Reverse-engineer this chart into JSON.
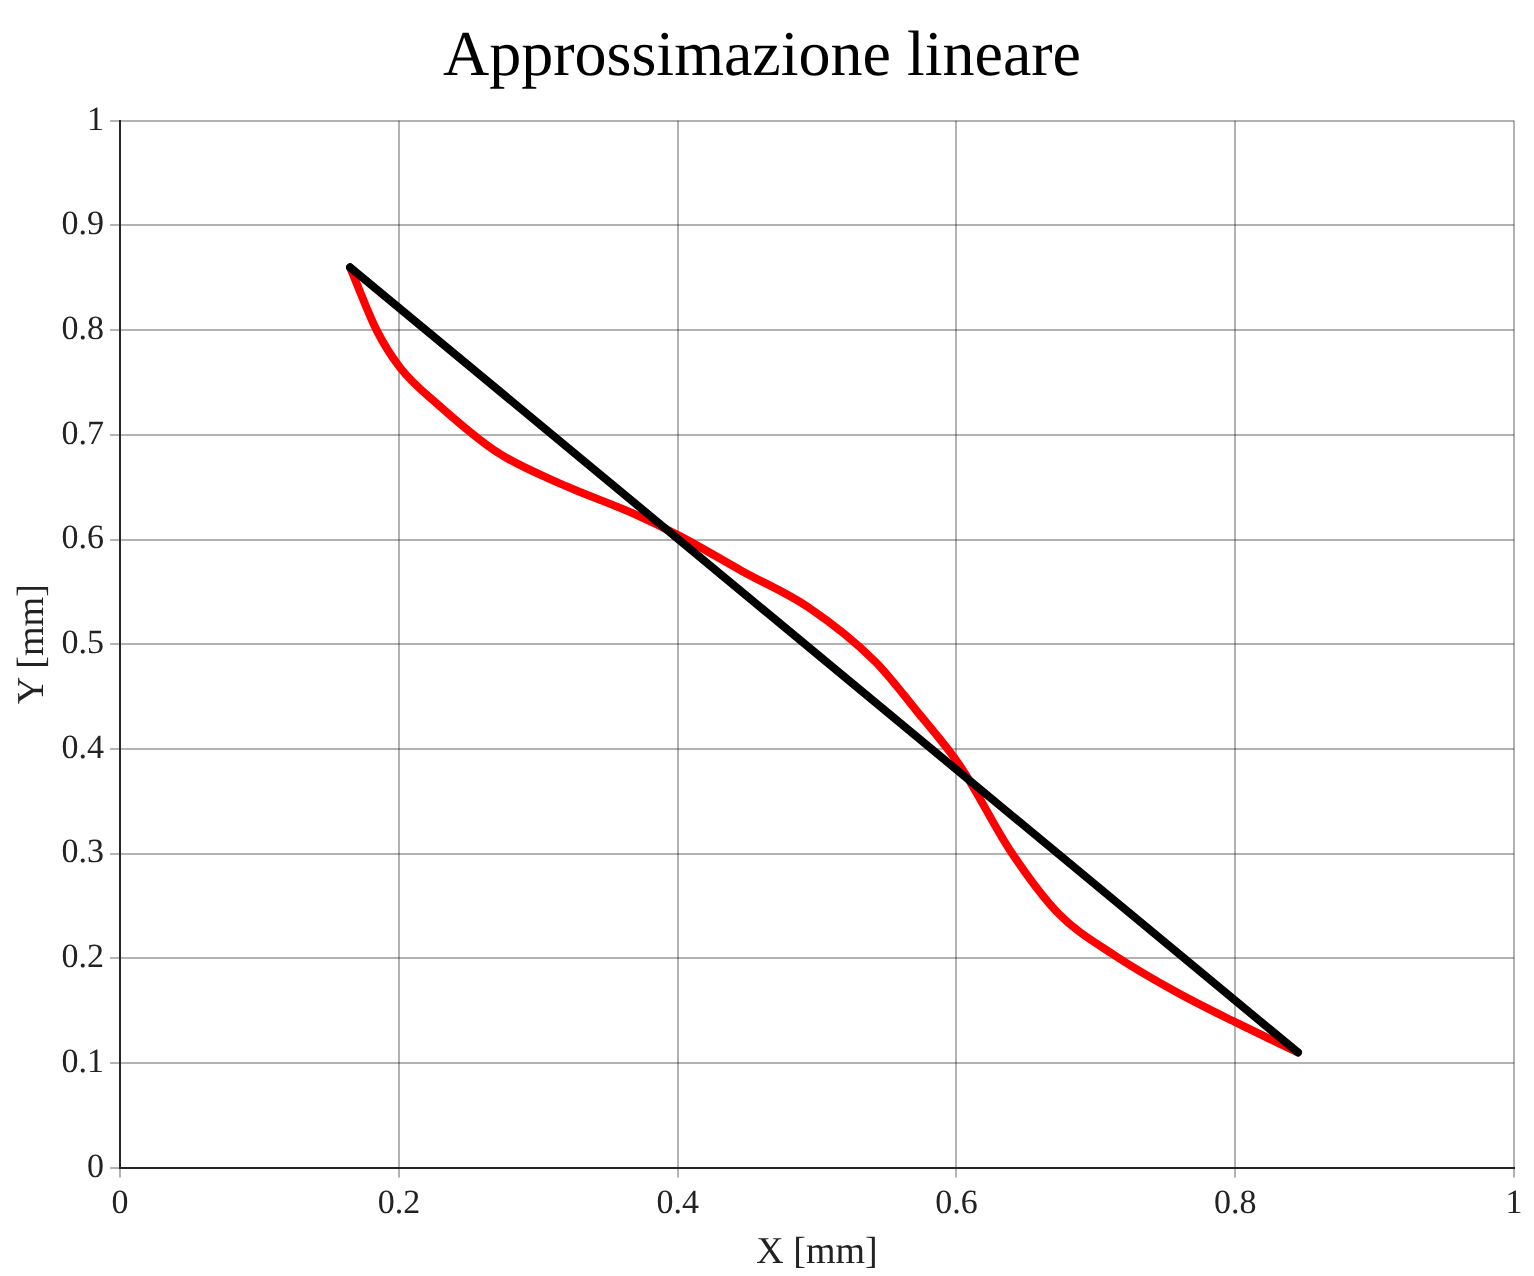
{
  "chart_data": {
    "type": "line",
    "title": "Approssimazione lineare",
    "xlabel": "X [mm]",
    "ylabel": "Y [mm]",
    "xlim": [
      0,
      1
    ],
    "xticks": [
      0,
      0.2,
      0.4,
      0.6,
      0.8,
      1
    ],
    "ylim": [
      0,
      1
    ],
    "yticks": [
      0,
      0.1,
      0.2,
      0.3,
      0.4,
      0.5,
      0.6,
      0.7,
      0.8,
      0.9,
      1
    ],
    "grid": true,
    "legend": false,
    "marker": "none",
    "line_style": "solid",
    "series": [
      {
        "color": "#000000",
        "x": [
          0.165,
          0.845
        ],
        "values": [
          0.86,
          0.11
        ]
      },
      {
        "color": "#ff0000",
        "x": [
          0.165,
          0.184,
          0.201,
          0.228,
          0.271,
          0.32,
          0.368,
          0.402,
          0.446,
          0.494,
          0.542,
          0.571,
          0.603,
          0.639,
          0.673,
          0.712,
          0.76,
          0.803,
          0.845
        ],
        "values": [
          0.86,
          0.8,
          0.764,
          0.729,
          0.683,
          0.651,
          0.625,
          0.603,
          0.57,
          0.535,
          0.483,
          0.437,
          0.383,
          0.302,
          0.243,
          0.204,
          0.166,
          0.137,
          0.11
        ]
      }
    ]
  }
}
